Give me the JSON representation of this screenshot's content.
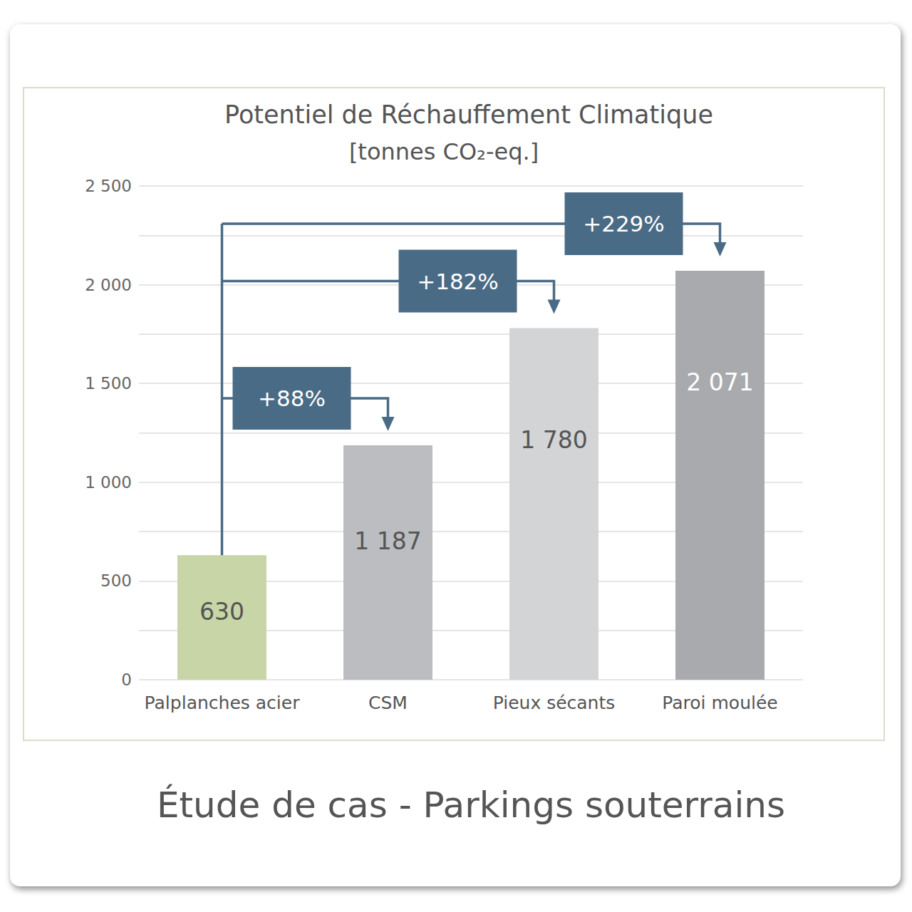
{
  "chart_data": {
    "type": "bar",
    "title": "Potentiel de Réchauffement Climatique",
    "subtitle": "[tonnes CO₂-eq.]",
    "footer": "Étude de cas - Parkings souterrains",
    "categories": [
      "Palplanches acier",
      "CSM",
      "Pieux sécants",
      "Paroi moulée"
    ],
    "values": [
      630,
      1187,
      1780,
      2071
    ],
    "value_labels": [
      "630",
      "1 187",
      "1 780",
      "2 071"
    ],
    "colors": [
      "#c8d5a6",
      "#bcbdc1",
      "#d3d4d6",
      "#a9aaad"
    ],
    "annotations": [
      "+88%",
      "+182%",
      "+229%"
    ],
    "ylim": [
      0,
      2500
    ],
    "yticks": [
      0,
      500,
      {
        "value": 1000,
        "label": "1 000"
      },
      {
        "value": 1500,
        "label": "1 500"
      },
      {
        "value": 2000,
        "label": "2 000"
      },
      {
        "value": 2500,
        "label": "2 500"
      }
    ],
    "grid": true,
    "data_labels": true
  }
}
